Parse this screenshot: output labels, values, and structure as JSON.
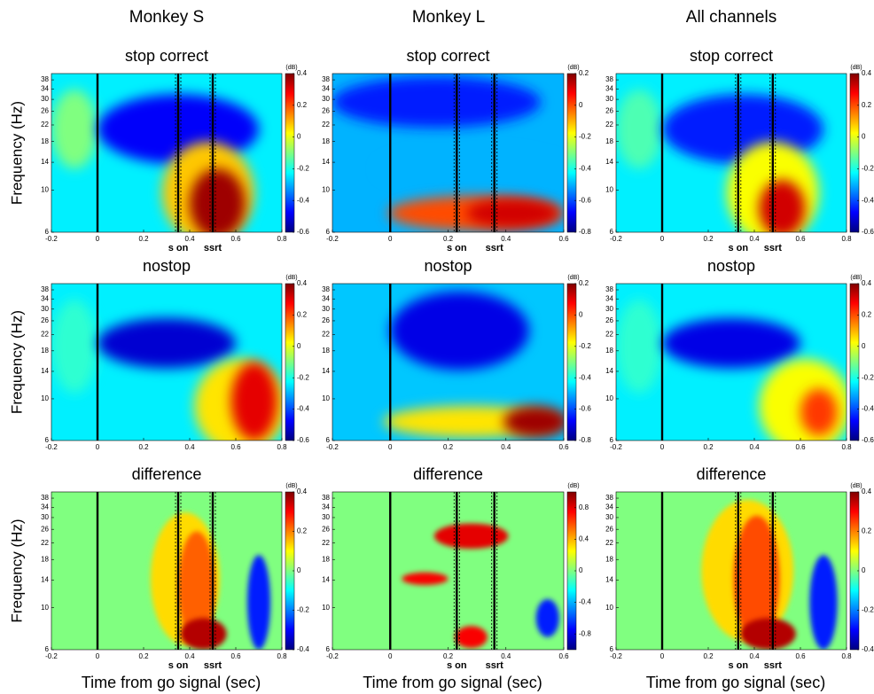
{
  "columns": [
    "Monkey S",
    "Monkey L",
    "All channels"
  ],
  "chart_data": [
    {
      "type": "heatmap",
      "title": "stop correct",
      "ylabel": "Frequency (Hz)",
      "xlim": [
        -0.2,
        0.8
      ],
      "xticks": [
        -0.2,
        0,
        0.2,
        0.4,
        0.6,
        0.8
      ],
      "ylim": [
        6,
        41
      ],
      "yticks": [
        6,
        10,
        14,
        18,
        22,
        26,
        30,
        34,
        38
      ],
      "log_y": true,
      "colorbar": {
        "label": "(dB)",
        "lim": [
          -0.6,
          0.4
        ],
        "ticks": [
          -0.6,
          -0.4,
          -0.2,
          0,
          0.2,
          0.4
        ]
      },
      "markers": [
        {
          "value": 0
        },
        {
          "value": 0.35,
          "label": "s on"
        },
        {
          "value": 0.5,
          "label": "ssrt"
        }
      ]
    },
    {
      "type": "heatmap",
      "title": "stop correct",
      "xlim": [
        -0.2,
        0.6
      ],
      "xticks": [
        -0.2,
        0,
        0.2,
        0.4,
        0.6
      ],
      "ylim": [
        6,
        41
      ],
      "yticks": [
        6,
        10,
        14,
        18,
        22,
        26,
        30,
        34,
        38
      ],
      "log_y": true,
      "colorbar": {
        "label": "(dB)",
        "lim": [
          -0.8,
          0.2
        ],
        "ticks": [
          -0.8,
          -0.6,
          -0.4,
          -0.2,
          0,
          0.2
        ]
      },
      "markers": [
        {
          "value": 0
        },
        {
          "value": 0.23,
          "label": "s on"
        },
        {
          "value": 0.36,
          "label": "ssrt"
        }
      ]
    },
    {
      "type": "heatmap",
      "title": "stop correct",
      "xlim": [
        -0.2,
        0.8
      ],
      "xticks": [
        -0.2,
        0,
        0.2,
        0.4,
        0.6,
        0.8
      ],
      "ylim": [
        6,
        41
      ],
      "yticks": [
        6,
        10,
        14,
        18,
        22,
        26,
        30,
        34,
        38
      ],
      "log_y": true,
      "colorbar": {
        "label": "(dB)",
        "lim": [
          -0.6,
          0.4
        ],
        "ticks": [
          -0.6,
          -0.4,
          -0.2,
          0,
          0.2,
          0.4
        ]
      },
      "markers": [
        {
          "value": 0
        },
        {
          "value": 0.33,
          "label": "s on"
        },
        {
          "value": 0.48,
          "label": "ssrt"
        }
      ]
    },
    {
      "type": "heatmap",
      "title": "nostop",
      "ylabel": "Frequency (Hz)",
      "xlim": [
        -0.2,
        0.8
      ],
      "xticks": [
        -0.2,
        0,
        0.2,
        0.4,
        0.6,
        0.8
      ],
      "ylim": [
        6,
        41
      ],
      "yticks": [
        6,
        10,
        14,
        18,
        22,
        26,
        30,
        34,
        38
      ],
      "log_y": true,
      "colorbar": {
        "label": "(dB)",
        "lim": [
          -0.6,
          0.4
        ],
        "ticks": [
          -0.6,
          -0.4,
          -0.2,
          0,
          0.2,
          0.4
        ]
      },
      "markers": [
        {
          "value": 0
        }
      ]
    },
    {
      "type": "heatmap",
      "title": "nostop",
      "xlim": [
        -0.2,
        0.6
      ],
      "xticks": [
        -0.2,
        0,
        0.2,
        0.4,
        0.6
      ],
      "ylim": [
        6,
        41
      ],
      "yticks": [
        6,
        10,
        14,
        18,
        22,
        26,
        30,
        34,
        38
      ],
      "log_y": true,
      "colorbar": {
        "label": "(dB)",
        "lim": [
          -0.8,
          0.2
        ],
        "ticks": [
          -0.8,
          -0.6,
          -0.4,
          -0.2,
          0,
          0.2
        ]
      },
      "markers": [
        {
          "value": 0
        }
      ]
    },
    {
      "type": "heatmap",
      "title": "nostop",
      "xlim": [
        -0.2,
        0.8
      ],
      "xticks": [
        -0.2,
        0,
        0.2,
        0.4,
        0.6,
        0.8
      ],
      "ylim": [
        6,
        41
      ],
      "yticks": [
        6,
        10,
        14,
        18,
        22,
        26,
        30,
        34,
        38
      ],
      "log_y": true,
      "colorbar": {
        "label": "(dB)",
        "lim": [
          -0.6,
          0.4
        ],
        "ticks": [
          -0.6,
          -0.4,
          -0.2,
          0,
          0.2,
          0.4
        ]
      },
      "markers": [
        {
          "value": 0
        }
      ]
    },
    {
      "type": "heatmap",
      "title": "difference",
      "ylabel": "Frequency (Hz)",
      "xlabel": "Time from go signal (sec)",
      "xlim": [
        -0.2,
        0.8
      ],
      "xticks": [
        -0.2,
        0,
        0.2,
        0.4,
        0.6,
        0.8
      ],
      "ylim": [
        6,
        41
      ],
      "yticks": [
        6,
        10,
        14,
        18,
        22,
        26,
        30,
        34,
        38
      ],
      "log_y": true,
      "colorbar": {
        "label": "(dB)",
        "lim": [
          -0.4,
          0.4
        ],
        "ticks": [
          -0.4,
          -0.2,
          0,
          0.2,
          0.4
        ]
      },
      "markers": [
        {
          "value": 0
        },
        {
          "value": 0.35,
          "label": "s on"
        },
        {
          "value": 0.5,
          "label": "ssrt"
        }
      ]
    },
    {
      "type": "heatmap",
      "title": "difference",
      "xlabel": "Time from go signal (sec)",
      "xlim": [
        -0.2,
        0.6
      ],
      "xticks": [
        -0.2,
        0,
        0.2,
        0.4,
        0.6
      ],
      "ylim": [
        6,
        41
      ],
      "yticks": [
        6,
        10,
        14,
        18,
        22,
        26,
        30,
        34,
        38
      ],
      "log_y": true,
      "colorbar": {
        "label": "(dB)",
        "lim": [
          -1,
          1
        ],
        "ticks": [
          -0.8,
          -0.4,
          0,
          0.4,
          0.8
        ]
      },
      "markers": [
        {
          "value": 0
        },
        {
          "value": 0.23,
          "label": "s on"
        },
        {
          "value": 0.36,
          "label": "ssrt"
        }
      ]
    },
    {
      "type": "heatmap",
      "title": "difference",
      "xlabel": "Time from go signal (sec)",
      "xlim": [
        -0.2,
        0.8
      ],
      "xticks": [
        -0.2,
        0,
        0.2,
        0.4,
        0.6,
        0.8
      ],
      "ylim": [
        6,
        41
      ],
      "yticks": [
        6,
        10,
        14,
        18,
        22,
        26,
        30,
        34,
        38
      ],
      "log_y": true,
      "colorbar": {
        "label": "(dB)",
        "lim": [
          -0.4,
          0.4
        ],
        "ticks": [
          -0.4,
          -0.2,
          0,
          0.2,
          0.4
        ]
      },
      "markers": [
        {
          "value": 0
        },
        {
          "value": 0.33,
          "label": "s on"
        },
        {
          "value": 0.48,
          "label": "ssrt"
        }
      ]
    }
  ]
}
